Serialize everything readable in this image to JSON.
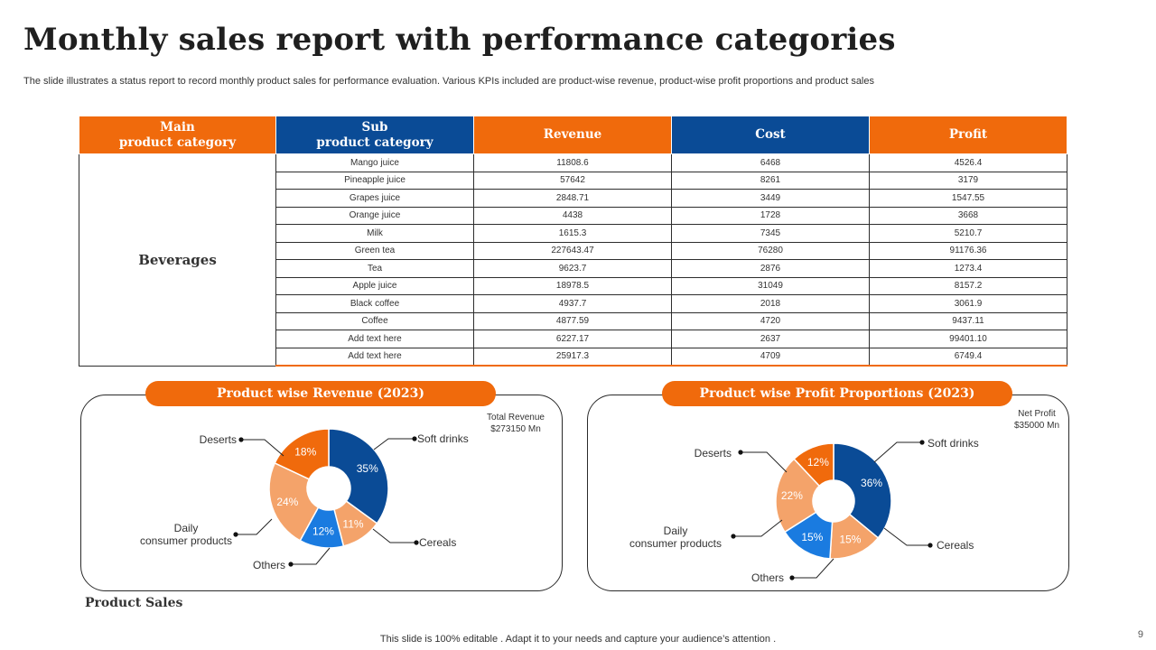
{
  "page": {
    "title": "Monthly sales report with performance categories",
    "subtitle": "The slide illustrates a status report to record monthly product sales for performance evaluation. Various KPIs included are product-wise revenue, product-wise profit proportions and product sales",
    "footer": "This slide is 100% editable . Adapt it to your needs and capture your audience’s attention .",
    "page_number": "9",
    "section_label": "Product Sales"
  },
  "colors": {
    "orange": "#f06a0c",
    "dark_blue": "#0a4b96",
    "light_orange": "#f4a36a",
    "bright_blue": "#1a7be0"
  },
  "table": {
    "headers": {
      "main_line1": "Main",
      "main_line2": "product category",
      "sub_line1": "Sub",
      "sub_line2": "product category",
      "revenue": "Revenue",
      "cost": "Cost",
      "profit": "Profit"
    },
    "main_category": "Beverages",
    "rows": [
      {
        "sub": "Mango juice",
        "revenue": "11808.6",
        "cost": "6468",
        "profit": "4526.4"
      },
      {
        "sub": "Pineapple  juice",
        "revenue": "57642",
        "cost": "8261",
        "profit": "3179"
      },
      {
        "sub": "Grapes juice",
        "revenue": "2848.71",
        "cost": "3449",
        "profit": "1547.55"
      },
      {
        "sub": "Orange juice",
        "revenue": "4438",
        "cost": "1728",
        "profit": "3668"
      },
      {
        "sub": "Milk",
        "revenue": "1615.3",
        "cost": "7345",
        "profit": "5210.7"
      },
      {
        "sub": "Green tea",
        "revenue": "227643.47",
        "cost": "76280",
        "profit": "91176.36"
      },
      {
        "sub": "Tea",
        "revenue": "9623.7",
        "cost": "2876",
        "profit": "1273.4"
      },
      {
        "sub": "Apple juice",
        "revenue": "18978.5",
        "cost": "31049",
        "profit": "8157.2"
      },
      {
        "sub": "Black coffee",
        "revenue": "4937.7",
        "cost": "2018",
        "profit": "3061.9"
      },
      {
        "sub": "Coffee",
        "revenue": "4877.59",
        "cost": "4720",
        "profit": "9437.11"
      },
      {
        "sub": "Add text here",
        "revenue": "6227.17",
        "cost": "2637",
        "profit": "99401.10"
      },
      {
        "sub": "Add text here",
        "revenue": "25917.3",
        "cost": "4709",
        "profit": "6749.4"
      }
    ]
  },
  "chart_data": [
    {
      "type": "pie",
      "title": "Product wise Revenue (2023)",
      "note_line1": "Total Revenue",
      "note_line2": "$273150 Mn",
      "slices": [
        {
          "label": "Soft drinks",
          "value": 35,
          "value_label": "35%",
          "color": "#0a4b96"
        },
        {
          "label": "Cereals",
          "value": 11,
          "value_label": "11%",
          "color": "#f4a36a"
        },
        {
          "label": "Others",
          "value": 12,
          "value_label": "12%",
          "color": "#1a7be0"
        },
        {
          "label": "Daily consumer products",
          "value": 24,
          "value_label": "24%",
          "color": "#f4a36a"
        },
        {
          "label": "Deserts",
          "value": 18,
          "value_label": "18%",
          "color": "#f06a0c"
        }
      ],
      "legend_lines": {
        "soft_drinks": [
          "Soft drinks"
        ],
        "cereals": [
          "Cereals"
        ],
        "others": [
          "Others"
        ],
        "daily": [
          "Daily",
          "consumer products"
        ],
        "deserts": [
          "Deserts"
        ]
      }
    },
    {
      "type": "pie",
      "title": "Product wise Profit Proportions (2023)",
      "note_line1": "Net Profit",
      "note_line2": "$35000 Mn",
      "slices": [
        {
          "label": "Soft drinks",
          "value": 36,
          "value_label": "36%",
          "color": "#0a4b96"
        },
        {
          "label": "Cereals",
          "value": 15,
          "value_label": "15%",
          "color": "#f4a36a"
        },
        {
          "label": "Others",
          "value": 15,
          "value_label": "15%",
          "color": "#1a7be0"
        },
        {
          "label": "Daily consumer products",
          "value": 22,
          "value_label": "22%",
          "color": "#f4a36a"
        },
        {
          "label": "Deserts",
          "value": 12,
          "value_label": "12%",
          "color": "#f06a0c"
        }
      ],
      "legend_lines": {
        "soft_drinks": [
          "Soft drinks"
        ],
        "cereals": [
          "Cereals"
        ],
        "others": [
          "Others"
        ],
        "daily": [
          "Daily",
          "consumer products"
        ],
        "deserts": [
          "Deserts"
        ]
      }
    }
  ]
}
